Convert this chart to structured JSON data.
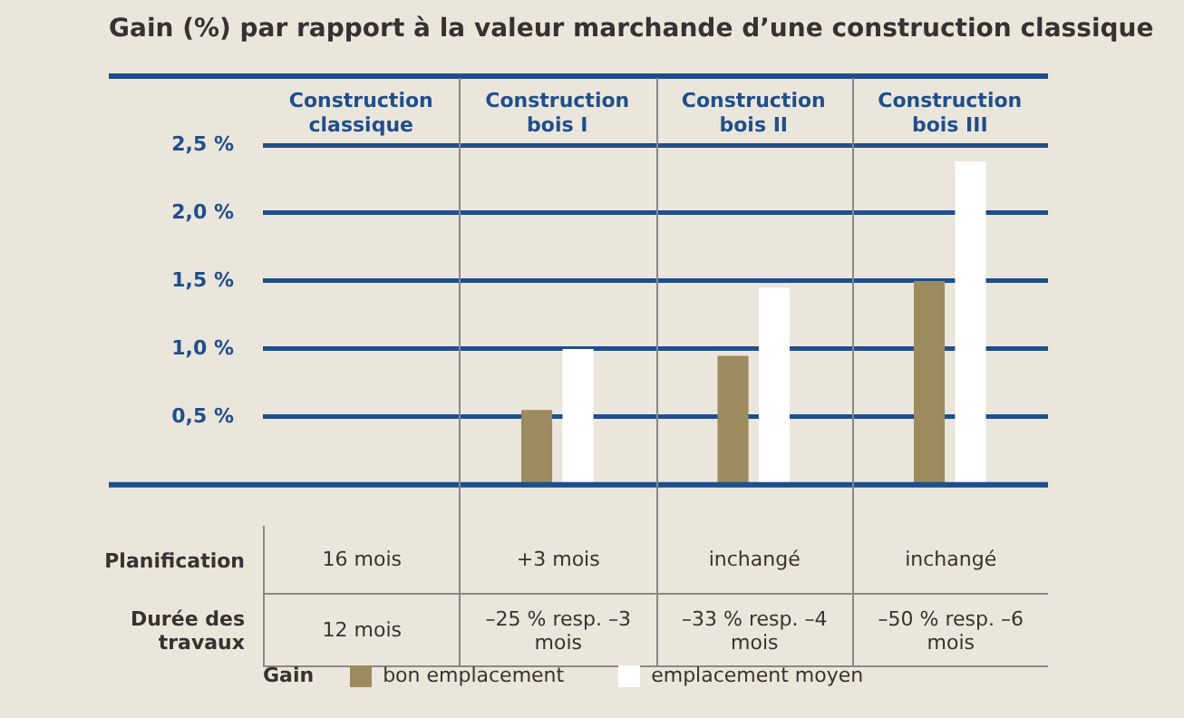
{
  "chart_data": {
    "type": "bar",
    "title": "Gain (%) par rapport à la valeur marchande d’une construction classique",
    "categories": [
      "Construction classique",
      "Construction bois I",
      "Construction bois II",
      "Construction bois III"
    ],
    "series": [
      {
        "name": "bon emplacement",
        "color": "#9c8b5e",
        "values": [
          null,
          0.55,
          0.95,
          1.5
        ]
      },
      {
        "name": "emplacement moyen",
        "color": "#ffffff",
        "values": [
          null,
          1.0,
          1.45,
          2.38
        ]
      }
    ],
    "ylim": [
      0,
      2.5
    ],
    "yticks": [
      {
        "value": 0.5,
        "label": "0,5 %"
      },
      {
        "value": 1,
        "label": "1,0 %"
      },
      {
        "value": 1.5,
        "label": "1,5 %"
      },
      {
        "value": 2,
        "label": "2,0 %"
      },
      {
        "value": 2.5,
        "label": "2,5 %"
      }
    ],
    "grid": "y",
    "legend": "bottom",
    "legend_title": "Gain",
    "annotations": [
      "Planification",
      "16 mois",
      "+3 mois",
      "inchangé",
      "inchangé",
      "Durée des travaux",
      "12 mois",
      "–25 % resp. –3 mois",
      "–33 % resp. –4 mois",
      "–50 % resp. –6 mois"
    ]
  }
}
